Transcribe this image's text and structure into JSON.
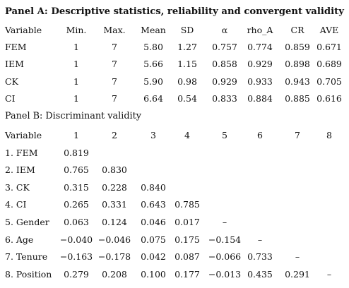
{
  "panel_a": {
    "title": "Panel A: Descriptive statistics, reliability and convergent validity",
    "headers": [
      "Variable",
      "Min.",
      "Max.",
      "Mean",
      "SD",
      "α",
      "rho_A",
      "CR",
      "AVE"
    ],
    "rows": [
      [
        "FEM",
        "1",
        "7",
        "5.80",
        "1.27",
        "0.757",
        "0.774",
        "0.859",
        "0.671"
      ],
      [
        "IEM",
        "1",
        "7",
        "5.66",
        "1.15",
        "0.858",
        "0.929",
        "0.898",
        "0.689"
      ],
      [
        "CK",
        "1",
        "7",
        "5.90",
        "0.98",
        "0.929",
        "0.933",
        "0.943",
        "0.705"
      ],
      [
        "CI",
        "1",
        "7",
        "6.64",
        "0.54",
        "0.833",
        "0.884",
        "0.885",
        "0.616"
      ]
    ]
  },
  "panel_b": {
    "title": "Panel B: Discriminant validity",
    "headers": [
      "Variable",
      "1",
      "2",
      "3",
      "4",
      "5",
      "6",
      "7",
      "8"
    ],
    "rows": [
      [
        "1. FEM",
        "0.819",
        "",
        "",
        "",
        "",
        "",
        "",
        ""
      ],
      [
        "2. IEM",
        "0.765",
        "0.830",
        "",
        "",
        "",
        "",
        "",
        ""
      ],
      [
        "3. CK",
        "0.315",
        "0.228",
        "0.840",
        "",
        "",
        "",
        "",
        ""
      ],
      [
        "4. CI",
        "0.265",
        "0.331",
        "0.643",
        "0.785",
        "",
        "",
        "",
        ""
      ],
      [
        "5. Gender",
        "0.063",
        "0.124",
        "0.046",
        "0.017",
        "–",
        "",
        "",
        ""
      ],
      [
        "6. Age",
        "−0.040",
        "−0.046",
        "0.075",
        "0.175",
        "−0.154",
        "–",
        "",
        ""
      ],
      [
        "7. Tenure",
        "−0.163",
        "−0.178",
        "0.042",
        "0.087",
        "−0.066",
        "0.733",
        "–",
        ""
      ],
      [
        "8. Position",
        "0.279",
        "0.208",
        "0.100",
        "0.177",
        "−0.013",
        "0.435",
        "0.291",
        "–"
      ]
    ]
  }
}
